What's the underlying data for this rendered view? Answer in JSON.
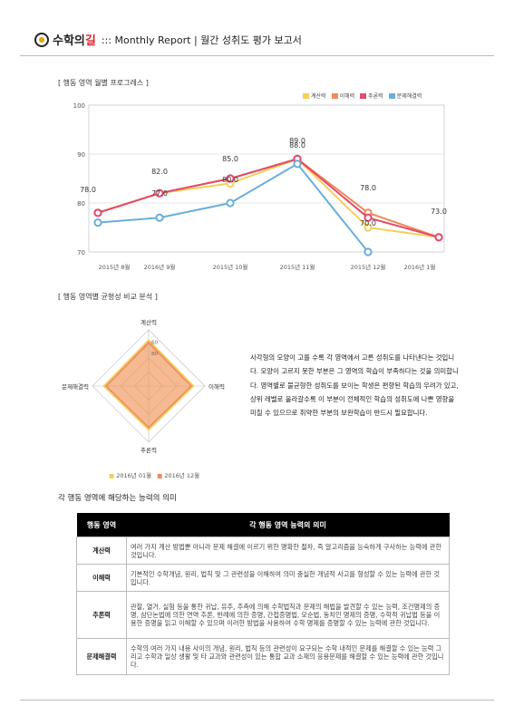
{
  "header": {
    "logo_text": "수학의",
    "logo_accent": "길",
    "title": "::: Monthly Report | 월간 성취도 평가 보고서"
  },
  "section1": {
    "title": "[ 행동 영역 월별 프로그레스 ]"
  },
  "section2": {
    "title": "[ 행동 영역별 균형성 비교 분석 ]"
  },
  "colors": {
    "calc": "#f5cf5a",
    "understand": "#ee8a5a",
    "reason": "#e34a6a",
    "solve": "#6aaedb"
  },
  "chart_data": [
    {
      "type": "line",
      "categories": [
        "2015년 8월",
        "2016년 9월",
        "2015년 10월",
        "2015년 11월",
        "2015년 12월",
        "2016년 1월"
      ],
      "ylim": [
        70,
        100
      ],
      "yticks": [
        "100",
        "90",
        "80",
        "70"
      ],
      "grid": true,
      "legend_position": "top-right",
      "series": [
        {
          "name": "계산력",
          "values": [
            78,
            82,
            84,
            89,
            75,
            73
          ],
          "color": "#f5cf5a"
        },
        {
          "name": "이해력",
          "values": [
            78,
            82,
            85,
            89,
            78,
            73
          ],
          "color": "#ee8a5a"
        },
        {
          "name": "추론력",
          "values": [
            78,
            82,
            85,
            89,
            77,
            73
          ],
          "color": "#e34a6a"
        },
        {
          "name": "문제해결력",
          "values": [
            76,
            77,
            80,
            88,
            70,
            null
          ],
          "color": "#6aaedb"
        }
      ],
      "data_labels": [
        "78.0",
        "82.0",
        "77.0",
        "85.0",
        "80.0",
        "89.0",
        "88.0",
        "78.0",
        "70.0",
        "73.0"
      ]
    },
    {
      "type": "radar",
      "axes": [
        "계산력",
        "이해력",
        "추론력",
        "문제해결력"
      ],
      "ticks": [
        "60",
        "80"
      ],
      "range": [
        0,
        100
      ],
      "series": [
        {
          "name": "2016년 01월",
          "values": [
            82,
            80,
            78,
            80
          ],
          "color": "#f5cf5a"
        },
        {
          "name": "2016년 12월",
          "values": [
            78,
            76,
            74,
            76
          ],
          "color": "#ee8a5a"
        }
      ]
    }
  ],
  "description": "사각형의 모양이 고를 수록 각 영역에서 고른 성취도를 나타낸다는 것입니다. 모양이 고르지 못한 부분은 그 영역의 학습이 부족하다는 것을 의미합니다. 영역별로 불균형한 성취도를 보이는 학생은 편향된 학습의 우려가 있고, 상위 레벨로 올라갈수록 이 부분이 전체적인 학습의 성취도에 나쁜 영향을 미칠 수 있으므로 취약한 부분의 보완학습이 반드시 필요합니다.",
  "table": {
    "title": "각 행동 영역에 해당하는 능력의 의미",
    "headers": [
      "행동 영역",
      "각 행동 영역 능력의 의미"
    ],
    "rows": [
      {
        "area": "계산력",
        "meaning": "여러 가지 계산 방법뿐 아니라 문제 해결에 이르기 위한 명확한 절차, 즉 알고리즘을 능숙하게 구사하는 능력에 관한 것입니다."
      },
      {
        "area": "이해력",
        "meaning": "기본적인 수학개념, 원리, 법칙 및 그 관련성을 이해하여 의미 충실한 개념적 사고를 형성할 수 있는 능력에 관한 것입니다."
      },
      {
        "area": "추론력",
        "meaning": "관찰, 열거, 실험 등을 통한 귀납, 유추, 추측에 의해 수학법칙과 문제의 해법을 발견할 수 있는 능력, 조건명제의 증명, 삼단논법에 의한 연역 추론, 반례에 의한 증명, 간접증명법, 모순법, 동치인 명제의 증명, 수학적 귀납법 등을 이용한 증명을 읽고 이해할 수 있으며 이러한 방법을 사용하여 수학 명제를 증명할 수 있는 능력에 관한 것입니다."
      },
      {
        "area": "문제해결력",
        "meaning": "수학의 여러 가지 내용 사이의 개념, 원리, 법칙 등의 관련성이 요구되는 수학 내적인 문제를 해결할 수 있는 능력 그리고 수학과 일상 생활 및 타 교과와 관련성이 있는 통합 교과 소재의 응용문제를 해결할 수 있는 능력에 관한 것입니다."
      }
    ]
  }
}
